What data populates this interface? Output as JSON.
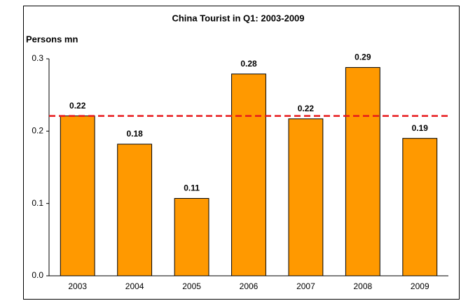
{
  "chart_data": {
    "type": "bar",
    "title": "China Tourist in Q1: 2003-2009",
    "y_label": "Persons mn",
    "categories": [
      "2003",
      "2004",
      "2005",
      "2006",
      "2007",
      "2008",
      "2009"
    ],
    "values": [
      0.221,
      0.182,
      0.107,
      0.279,
      0.217,
      0.288,
      0.19
    ],
    "value_labels": [
      "0.22",
      "0.18",
      "0.11",
      "0.28",
      "0.22",
      "0.29",
      "0.19"
    ],
    "color": "#ff9900",
    "ylim": [
      0,
      0.3
    ],
    "yticks": [
      {
        "value": 0,
        "label": "0.0"
      },
      0.1,
      0.2,
      0.3
    ],
    "grid": false,
    "reference_line": {
      "value": 0.221,
      "color": "#e8191b",
      "dashed": true
    }
  }
}
